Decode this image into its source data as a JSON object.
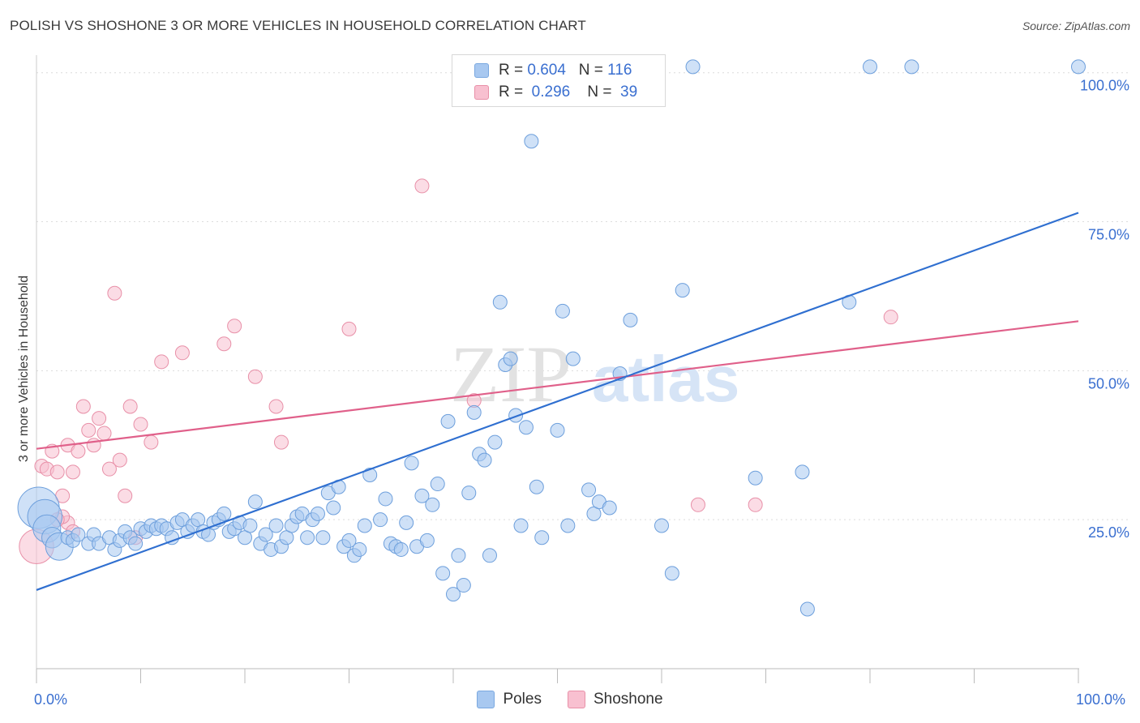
{
  "title": "POLISH VS SHOSHONE 3 OR MORE VEHICLES IN HOUSEHOLD CORRELATION CHART",
  "source": "Source: ZipAtlas.com",
  "watermark": {
    "zip": "ZIP",
    "atlas": "atlas"
  },
  "legend": {
    "rows": [
      {
        "r_label": "R =",
        "r_value": "0.604",
        "n_label": "N =",
        "n_value": "116",
        "color": "#a8c8f0",
        "border": "#7aa8e0"
      },
      {
        "r_label": "R =",
        "r_value": "0.296",
        "n_label": "N =",
        "n_value": "39",
        "color": "#f8c0d0",
        "border": "#e890a8"
      }
    ]
  },
  "bottom_legend": [
    {
      "label": "Poles",
      "color": "#a8c8f0",
      "border": "#7aa8e0"
    },
    {
      "label": "Shoshone",
      "color": "#f8c0d0",
      "border": "#e890a8"
    }
  ],
  "chart_data": {
    "type": "scatter",
    "title": "POLISH VS SHOSHONE 3 OR MORE VEHICLES IN HOUSEHOLD CORRELATION CHART",
    "xlabel": "",
    "ylabel": "3 or more Vehicles in Household",
    "xlim": [
      0,
      100
    ],
    "ylim": [
      0,
      102
    ],
    "x_tick_labels": [
      "0.0%",
      "100.0%"
    ],
    "y_tick_labels": [
      "25.0%",
      "50.0%",
      "75.0%",
      "100.0%"
    ],
    "y_ticks": [
      25,
      50,
      75,
      100
    ],
    "grid": true,
    "colors": {
      "poles": "#a8c8f0",
      "poles_edge": "#6d9fdc",
      "poles_line": "#2f6fd0",
      "shoshone": "#f8c0d0",
      "shoshone_edge": "#e890a8",
      "shoshone_line": "#e0608a"
    },
    "series": [
      {
        "name": "Poles",
        "trend": {
          "x0": 0,
          "y0": 13.2,
          "x1": 100,
          "y1": 76.5
        },
        "points": [
          [
            0.2,
            27.0,
            3
          ],
          [
            0.8,
            25.5,
            2.5
          ],
          [
            1.0,
            23.5,
            2
          ],
          [
            1.5,
            22.0,
            1.5
          ],
          [
            2.2,
            20.5,
            2
          ],
          [
            3.0,
            22.0,
            1
          ],
          [
            3.5,
            21.5,
            1
          ],
          [
            4.0,
            22.5,
            1
          ],
          [
            5.0,
            21.0,
            1
          ],
          [
            5.5,
            22.5,
            1
          ],
          [
            6.0,
            21.0,
            1
          ],
          [
            7.0,
            22.0,
            1
          ],
          [
            7.5,
            20.0,
            1
          ],
          [
            8.0,
            21.5,
            1
          ],
          [
            8.5,
            23.0,
            1
          ],
          [
            9.0,
            22.0,
            1
          ],
          [
            9.5,
            21.0,
            1
          ],
          [
            10.0,
            23.5,
            1
          ],
          [
            10.5,
            23.0,
            1
          ],
          [
            11.0,
            24.0,
            1
          ],
          [
            11.5,
            23.5,
            1
          ],
          [
            12.0,
            24.0,
            1
          ],
          [
            12.5,
            23.5,
            1
          ],
          [
            13.0,
            22.0,
            1
          ],
          [
            13.5,
            24.5,
            1
          ],
          [
            14.0,
            25.0,
            1
          ],
          [
            14.5,
            23.0,
            1
          ],
          [
            15.0,
            24.0,
            1
          ],
          [
            15.5,
            25.0,
            1
          ],
          [
            16.0,
            23.0,
            1
          ],
          [
            16.5,
            22.5,
            1
          ],
          [
            17.0,
            24.5,
            1
          ],
          [
            17.5,
            25.0,
            1
          ],
          [
            18.0,
            26.0,
            1
          ],
          [
            18.5,
            23.0,
            1
          ],
          [
            19.0,
            23.5,
            1
          ],
          [
            19.5,
            24.5,
            1
          ],
          [
            20.0,
            22.0,
            1
          ],
          [
            20.5,
            24.0,
            1
          ],
          [
            21.0,
            28.0,
            1
          ],
          [
            21.5,
            21.0,
            1
          ],
          [
            22.0,
            22.5,
            1
          ],
          [
            22.5,
            20.0,
            1
          ],
          [
            23.0,
            24.0,
            1
          ],
          [
            23.5,
            20.5,
            1
          ],
          [
            24.0,
            22.0,
            1
          ],
          [
            24.5,
            24.0,
            1
          ],
          [
            25.0,
            25.5,
            1
          ],
          [
            25.5,
            26.0,
            1
          ],
          [
            26.0,
            22.0,
            1
          ],
          [
            26.5,
            25.0,
            1
          ],
          [
            27.0,
            26.0,
            1
          ],
          [
            27.5,
            22.0,
            1
          ],
          [
            28.0,
            29.5,
            1
          ],
          [
            28.5,
            27.0,
            1
          ],
          [
            29.0,
            30.5,
            1
          ],
          [
            29.5,
            20.5,
            1
          ],
          [
            30.0,
            21.5,
            1
          ],
          [
            30.5,
            19.0,
            1
          ],
          [
            31.0,
            20.0,
            1
          ],
          [
            31.5,
            24.0,
            1
          ],
          [
            32.0,
            32.5,
            1
          ],
          [
            33.0,
            25.0,
            1
          ],
          [
            33.5,
            28.5,
            1
          ],
          [
            34.0,
            21.0,
            1
          ],
          [
            34.5,
            20.5,
            1
          ],
          [
            35.0,
            20.0,
            1
          ],
          [
            35.5,
            24.5,
            1
          ],
          [
            36.0,
            34.5,
            1
          ],
          [
            36.5,
            20.5,
            1
          ],
          [
            37.0,
            29.0,
            1
          ],
          [
            37.5,
            21.5,
            1
          ],
          [
            38.0,
            27.5,
            1
          ],
          [
            38.5,
            31.0,
            1
          ],
          [
            39.0,
            16.0,
            1
          ],
          [
            39.5,
            41.5,
            1
          ],
          [
            40.0,
            12.5,
            1
          ],
          [
            40.5,
            19.0,
            1
          ],
          [
            41.0,
            14.0,
            1
          ],
          [
            41.5,
            29.5,
            1
          ],
          [
            42.0,
            43.0,
            1
          ],
          [
            42.5,
            36.0,
            1
          ],
          [
            43.0,
            35.0,
            1
          ],
          [
            43.5,
            19.0,
            1
          ],
          [
            44.0,
            38.0,
            1
          ],
          [
            44.5,
            61.5,
            1
          ],
          [
            45.0,
            51.0,
            1
          ],
          [
            45.5,
            52.0,
            1
          ],
          [
            46.0,
            42.5,
            1
          ],
          [
            46.5,
            24.0,
            1
          ],
          [
            47.0,
            40.5,
            1
          ],
          [
            47.5,
            88.5,
            1
          ],
          [
            48.0,
            30.5,
            1
          ],
          [
            48.5,
            22.0,
            1
          ],
          [
            50.0,
            40.0,
            1
          ],
          [
            50.5,
            60.0,
            1
          ],
          [
            51.0,
            24.0,
            1
          ],
          [
            51.5,
            52.0,
            1
          ],
          [
            53.0,
            30.0,
            1
          ],
          [
            53.5,
            26.0,
            1
          ],
          [
            54.0,
            28.0,
            1
          ],
          [
            55.0,
            27.0,
            1
          ],
          [
            56.0,
            49.5,
            1
          ],
          [
            57.0,
            58.5,
            1
          ],
          [
            60.0,
            24.0,
            1
          ],
          [
            61.0,
            16.0,
            1
          ],
          [
            62.0,
            63.5,
            1
          ],
          [
            63.0,
            101.0,
            1
          ],
          [
            69.0,
            32.0,
            1
          ],
          [
            73.5,
            33.0,
            1
          ],
          [
            74.0,
            10.0,
            1
          ],
          [
            78.0,
            61.5,
            1
          ],
          [
            80.0,
            101.0,
            1
          ],
          [
            84.0,
            101.0,
            1
          ],
          [
            100.0,
            101.0,
            1
          ],
          [
            49.5,
            101.0,
            1
          ]
        ]
      },
      {
        "name": "Shoshone",
        "trend": {
          "x0": 0,
          "y0": 36.9,
          "x1": 100,
          "y1": 58.3
        },
        "points": [
          [
            0.0,
            20.5,
            2.5
          ],
          [
            0.5,
            34.0,
            1
          ],
          [
            1.0,
            33.5,
            1
          ],
          [
            1.5,
            36.5,
            1
          ],
          [
            2.0,
            33.0,
            1
          ],
          [
            2.5,
            29.0,
            1
          ],
          [
            3.0,
            37.5,
            1
          ],
          [
            3.5,
            33.0,
            1
          ],
          [
            4.0,
            36.5,
            1
          ],
          [
            4.5,
            44.0,
            1
          ],
          [
            5.0,
            40.0,
            1
          ],
          [
            5.5,
            37.5,
            1
          ],
          [
            6.0,
            42.0,
            1
          ],
          [
            6.5,
            39.5,
            1
          ],
          [
            7.0,
            33.5,
            1
          ],
          [
            7.5,
            63.0,
            1
          ],
          [
            8.0,
            35.0,
            1
          ],
          [
            8.5,
            29.0,
            1
          ],
          [
            9.0,
            44.0,
            1
          ],
          [
            9.5,
            22.0,
            1
          ],
          [
            10.0,
            41.0,
            1
          ],
          [
            11.0,
            38.0,
            1
          ],
          [
            12.0,
            51.5,
            1
          ],
          [
            14.0,
            53.0,
            1
          ],
          [
            18.0,
            54.5,
            1
          ],
          [
            19.0,
            57.5,
            1
          ],
          [
            21.0,
            49.0,
            1
          ],
          [
            23.0,
            44.0,
            1
          ],
          [
            23.5,
            38.0,
            1
          ],
          [
            30.0,
            57.0,
            1
          ],
          [
            37.0,
            81.0,
            1
          ],
          [
            42.0,
            45.0,
            1
          ],
          [
            63.5,
            27.5,
            1
          ],
          [
            69.0,
            27.5,
            1
          ],
          [
            82.0,
            59.0,
            1
          ],
          [
            3.0,
            24.5,
            1
          ],
          [
            2.5,
            25.5,
            1
          ],
          [
            3.5,
            23.0,
            1
          ],
          [
            2.0,
            25.0,
            1
          ]
        ]
      }
    ]
  }
}
